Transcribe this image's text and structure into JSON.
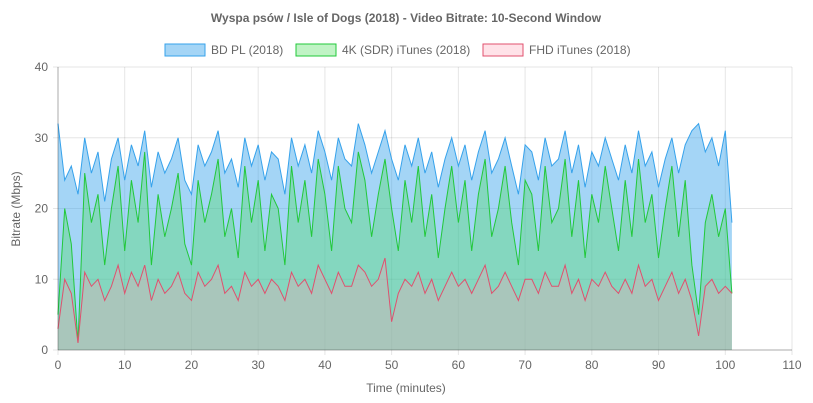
{
  "chart_data": {
    "type": "area",
    "title": "Wyspa psów / Isle of Dogs (2018) - Video Bitrate: 10-Second Window",
    "xlabel": "Time (minutes)",
    "ylabel": "Bitrate (Mbps)",
    "xlim": [
      0,
      110
    ],
    "ylim": [
      0,
      40
    ],
    "xticks": [
      0,
      10,
      20,
      30,
      40,
      50,
      60,
      70,
      80,
      90,
      100,
      110
    ],
    "yticks": [
      0,
      10,
      20,
      30,
      40
    ],
    "grid": true,
    "legend": "top",
    "x": [
      0,
      1,
      2,
      3,
      4,
      5,
      6,
      7,
      8,
      9,
      10,
      11,
      12,
      13,
      14,
      15,
      16,
      17,
      18,
      19,
      20,
      21,
      22,
      23,
      24,
      25,
      26,
      27,
      28,
      29,
      30,
      31,
      32,
      33,
      34,
      35,
      36,
      37,
      38,
      39,
      40,
      41,
      42,
      43,
      44,
      45,
      46,
      47,
      48,
      49,
      50,
      51,
      52,
      53,
      54,
      55,
      56,
      57,
      58,
      59,
      60,
      61,
      62,
      63,
      64,
      65,
      66,
      67,
      68,
      69,
      70,
      71,
      72,
      73,
      74,
      75,
      76,
      77,
      78,
      79,
      80,
      81,
      82,
      83,
      84,
      85,
      86,
      87,
      88,
      89,
      90,
      91,
      92,
      93,
      94,
      95,
      96,
      97,
      98,
      99,
      100,
      101
    ],
    "series": [
      {
        "name": "BD PL (2018)",
        "color": "#36a2eb",
        "fill": "rgba(54,162,235,0.45)",
        "values": [
          32,
          24,
          26,
          22,
          30,
          25,
          28,
          21,
          27,
          30,
          24,
          29,
          26,
          31,
          23,
          28,
          25,
          27,
          30,
          24,
          22,
          29,
          26,
          28,
          31,
          25,
          27,
          23,
          30,
          26,
          29,
          24,
          28,
          27,
          22,
          30,
          26,
          29,
          25,
          31,
          28,
          24,
          30,
          27,
          26,
          32,
          29,
          25,
          28,
          31,
          27,
          24,
          29,
          26,
          30,
          25,
          28,
          23,
          27,
          30,
          26,
          29,
          24,
          28,
          31,
          25,
          27,
          30,
          26,
          22,
          29,
          28,
          24,
          30,
          26,
          27,
          31,
          25,
          29,
          23,
          28,
          26,
          30,
          27,
          24,
          29,
          25,
          31,
          26,
          28,
          23,
          27,
          30,
          25,
          29,
          31,
          32,
          28,
          30,
          26,
          31,
          18
        ]
      },
      {
        "name": "4K (SDR) iTunes (2018)",
        "color": "#22c83a",
        "fill": "rgba(75,220,90,0.35)",
        "values": [
          5,
          20,
          15,
          1,
          25,
          18,
          22,
          12,
          20,
          26,
          14,
          24,
          18,
          28,
          12,
          22,
          16,
          20,
          25,
          15,
          12,
          24,
          18,
          22,
          27,
          16,
          20,
          13,
          26,
          18,
          24,
          14,
          22,
          20,
          12,
          26,
          18,
          24,
          16,
          27,
          22,
          14,
          26,
          20,
          18,
          28,
          24,
          16,
          22,
          27,
          20,
          14,
          24,
          18,
          26,
          16,
          22,
          13,
          20,
          26,
          18,
          24,
          14,
          22,
          27,
          16,
          20,
          26,
          18,
          12,
          24,
          22,
          14,
          26,
          18,
          20,
          27,
          16,
          24,
          13,
          22,
          18,
          26,
          20,
          14,
          24,
          16,
          27,
          18,
          22,
          13,
          20,
          26,
          16,
          24,
          12,
          5,
          18,
          22,
          16,
          20,
          8
        ]
      },
      {
        "name": "FHD iTunes (2018)",
        "color": "#e0506e",
        "fill": "rgba(255,160,180,0.3)",
        "values": [
          3,
          10,
          8,
          1,
          11,
          9,
          10,
          7,
          9,
          12,
          8,
          11,
          9,
          12,
          7,
          10,
          8,
          9,
          11,
          8,
          7,
          11,
          9,
          10,
          12,
          8,
          9,
          7,
          11,
          9,
          10,
          8,
          10,
          9,
          7,
          11,
          9,
          10,
          8,
          12,
          10,
          8,
          11,
          9,
          9,
          12,
          11,
          9,
          10,
          13,
          4,
          8,
          10,
          9,
          11,
          8,
          10,
          7,
          9,
          11,
          9,
          10,
          8,
          10,
          12,
          8,
          9,
          11,
          9,
          7,
          10,
          10,
          8,
          11,
          9,
          9,
          12,
          8,
          10,
          7,
          10,
          9,
          11,
          9,
          8,
          10,
          8,
          12,
          9,
          10,
          7,
          9,
          11,
          8,
          10,
          7,
          2,
          9,
          10,
          8,
          9,
          8
        ]
      }
    ]
  }
}
